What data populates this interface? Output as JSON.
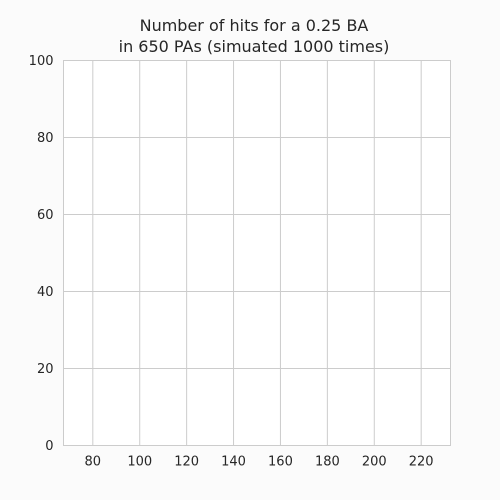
{
  "chart_data": {
    "type": "bar",
    "title_lines": [
      "Number of hits for a 0.25 BA",
      " in 650 PAs (simuated 1000 times)"
    ],
    "xlabel": "",
    "ylabel": "",
    "xlim": [
      67.5,
      232.5
    ],
    "ylim": [
      0,
      100
    ],
    "x_ticks": [
      80,
      100,
      120,
      140,
      160,
      180,
      200,
      220
    ],
    "y_ticks": [
      0,
      20,
      40,
      60,
      80,
      100
    ],
    "grid": true,
    "series": []
  }
}
